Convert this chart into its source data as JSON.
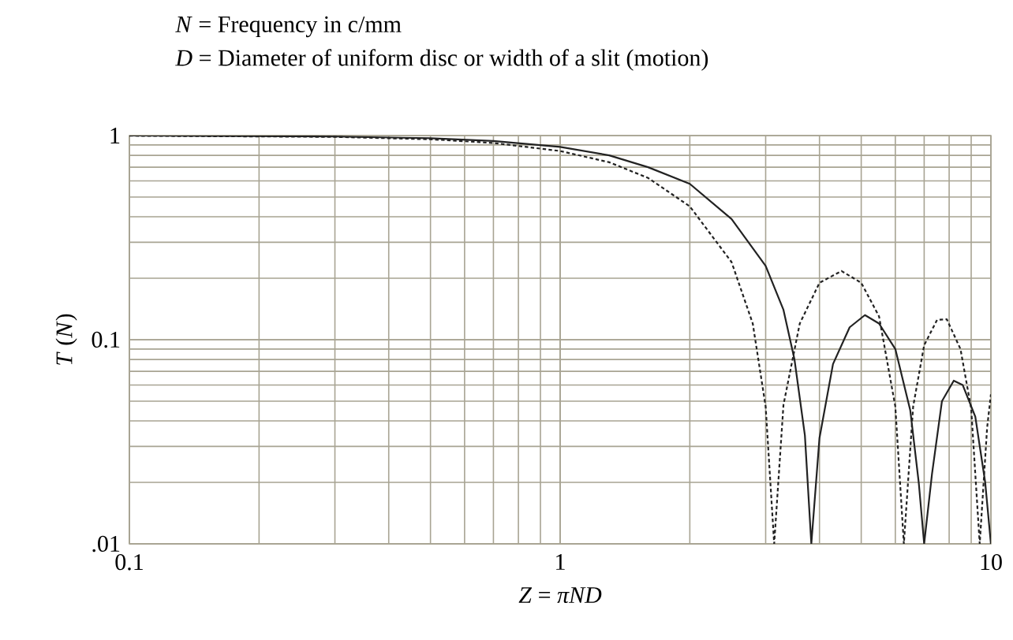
{
  "chart_data": {
    "type": "line",
    "annotations": [
      "*N* = Frequency in c/mm",
      "*D* = Diameter of uniform disc or width of a slit (motion)"
    ],
    "xlabel": "*Z* = *πND*",
    "ylabel": "*T* (*N*)",
    "log": "xy",
    "grid": true,
    "xlim": [
      0.1,
      10
    ],
    "ylim": [
      0.01,
      1
    ],
    "xticks": [
      0.1,
      1,
      10
    ],
    "yticks": [
      {
        "value": 0.01,
        "label": ".01"
      },
      0.1,
      1
    ],
    "series": [
      {
        "color": "#222222",
        "line_style": "solid",
        "x": [
          0.1,
          0.3,
          0.5,
          0.7,
          1,
          1.3,
          1.6,
          2,
          2.5,
          3,
          3.3,
          3.5,
          3.7,
          3.83,
          4,
          4.3,
          4.7,
          5.1,
          5.5,
          6,
          6.5,
          6.8,
          7.0,
          7.3,
          7.7,
          8.2,
          8.6,
          9.2,
          9.7,
          10
        ],
        "values": [
          1.0,
          0.989,
          0.97,
          0.94,
          0.88,
          0.8,
          0.7,
          0.58,
          0.39,
          0.23,
          0.14,
          0.08,
          0.034,
          0.01,
          0.033,
          0.076,
          0.115,
          0.132,
          0.12,
          0.09,
          0.045,
          0.02,
          0.01,
          0.022,
          0.05,
          0.063,
          0.06,
          0.042,
          0.02,
          0.01
        ]
      },
      {
        "color": "#222222",
        "line_style": "dashed",
        "x": [
          0.1,
          0.3,
          0.5,
          0.7,
          1,
          1.3,
          1.6,
          2,
          2.5,
          2.8,
          3,
          3.14,
          3.3,
          3.6,
          4,
          4.5,
          5,
          5.5,
          6,
          6.28,
          6.6,
          7,
          7.5,
          7.9,
          8.5,
          9,
          9.42,
          9.8,
          10
        ],
        "values": [
          0.998,
          0.985,
          0.959,
          0.92,
          0.84,
          0.74,
          0.62,
          0.45,
          0.24,
          0.12,
          0.047,
          0.01,
          0.048,
          0.12,
          0.19,
          0.217,
          0.19,
          0.13,
          0.047,
          0.01,
          0.047,
          0.094,
          0.125,
          0.126,
          0.09,
          0.046,
          0.01,
          0.037,
          0.054
        ]
      }
    ]
  }
}
